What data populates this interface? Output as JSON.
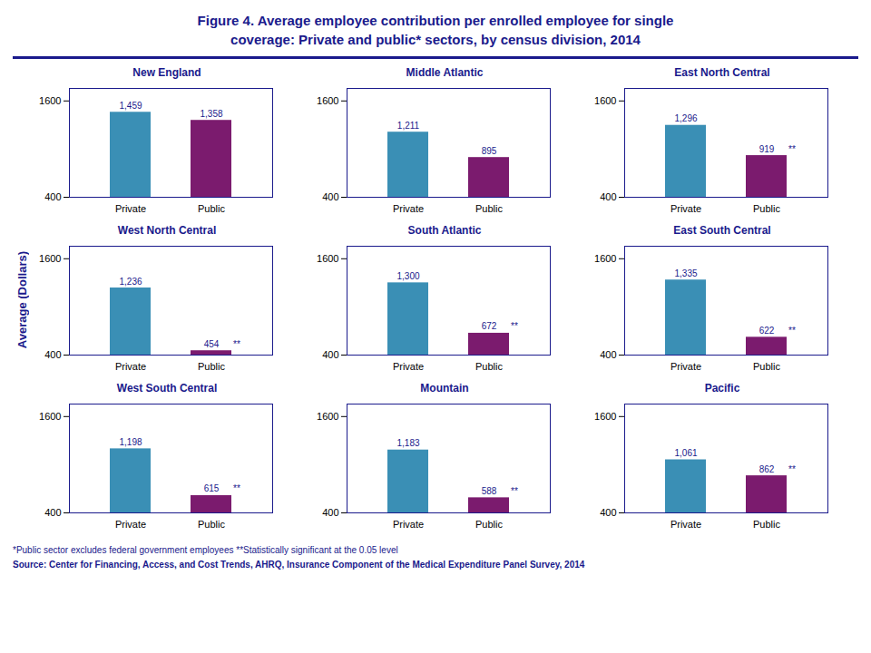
{
  "title": "Figure 4. Average employee contribution per enrolled employee for single\ncoverage: Private and public* sectors, by census division, 2014",
  "ylabel": "Average (Dollars)",
  "annotations": [
    "*Public sector excludes federal government employees   **Statistically significant at the 0.05 level",
    "Source: Center for Financing, Access, and Cost Trends, AHRQ, Insurance Component of the Medical Expenditure Panel Survey, 2014"
  ],
  "chart_data": [
    {
      "type": "bar",
      "title": "New England",
      "categories": [
        "Private",
        "Public"
      ],
      "values": [
        1459,
        1358
      ],
      "value_labels": [
        "1,459",
        "1,358"
      ],
      "colors": [
        "#3A8FB5",
        "#7B1B6E"
      ],
      "ylim": [
        400,
        1756
      ],
      "yticks": [
        400,
        1600
      ],
      "data_labels": true,
      "grid": false
    },
    {
      "type": "bar",
      "title": "Middle Atlantic",
      "categories": [
        "Private",
        "Public"
      ],
      "values": [
        1211,
        895
      ],
      "value_labels": [
        "1,211",
        "895"
      ],
      "colors": [
        "#3A8FB5",
        "#7B1B6E"
      ],
      "ylim": [
        400,
        1756
      ],
      "yticks": [
        400,
        1600
      ],
      "data_labels": true,
      "grid": false
    },
    {
      "type": "bar",
      "title": "East North Central",
      "categories": [
        "Private",
        "Public"
      ],
      "values": [
        1296,
        919
      ],
      "value_labels": [
        "1,296",
        "919"
      ],
      "colors": [
        "#3A8FB5",
        "#7B1B6E"
      ],
      "ylim": [
        400,
        1756
      ],
      "yticks": [
        400,
        1600
      ],
      "data_labels": true,
      "grid": false,
      "annotations": [
        {
          "text": "**",
          "x": "Public"
        }
      ]
    },
    {
      "type": "bar",
      "title": "West North Central",
      "categories": [
        "Private",
        "Public"
      ],
      "values": [
        1236,
        454
      ],
      "value_labels": [
        "1,236",
        "454"
      ],
      "colors": [
        "#3A8FB5",
        "#7B1B6E"
      ],
      "ylim": [
        400,
        1756
      ],
      "yticks": [
        400,
        1600
      ],
      "data_labels": true,
      "grid": false,
      "annotations": [
        {
          "text": "**",
          "x": "Public"
        }
      ]
    },
    {
      "type": "bar",
      "title": "South Atlantic",
      "categories": [
        "Private",
        "Public"
      ],
      "values": [
        1300,
        672
      ],
      "value_labels": [
        "1,300",
        "672"
      ],
      "colors": [
        "#3A8FB5",
        "#7B1B6E"
      ],
      "ylim": [
        400,
        1756
      ],
      "yticks": [
        400,
        1600
      ],
      "data_labels": true,
      "grid": false,
      "annotations": [
        {
          "text": "**",
          "x": "Public"
        }
      ]
    },
    {
      "type": "bar",
      "title": "East South Central",
      "categories": [
        "Private",
        "Public"
      ],
      "values": [
        1335,
        622
      ],
      "value_labels": [
        "1,335",
        "622"
      ],
      "colors": [
        "#3A8FB5",
        "#7B1B6E"
      ],
      "ylim": [
        400,
        1756
      ],
      "yticks": [
        400,
        1600
      ],
      "data_labels": true,
      "grid": false,
      "annotations": [
        {
          "text": "**",
          "x": "Public"
        }
      ]
    },
    {
      "type": "bar",
      "title": "West South Central",
      "categories": [
        "Private",
        "Public"
      ],
      "values": [
        1198,
        615
      ],
      "value_labels": [
        "1,198",
        "615"
      ],
      "colors": [
        "#3A8FB5",
        "#7B1B6E"
      ],
      "ylim": [
        400,
        1756
      ],
      "yticks": [
        400,
        1600
      ],
      "data_labels": true,
      "grid": false,
      "annotations": [
        {
          "text": "**",
          "x": "Public"
        }
      ]
    },
    {
      "type": "bar",
      "title": "Mountain",
      "categories": [
        "Private",
        "Public"
      ],
      "values": [
        1183,
        588
      ],
      "value_labels": [
        "1,183",
        "588"
      ],
      "colors": [
        "#3A8FB5",
        "#7B1B6E"
      ],
      "ylim": [
        400,
        1756
      ],
      "yticks": [
        400,
        1600
      ],
      "data_labels": true,
      "grid": false,
      "annotations": [
        {
          "text": "**",
          "x": "Public"
        }
      ]
    },
    {
      "type": "bar",
      "title": "Pacific",
      "categories": [
        "Private",
        "Public"
      ],
      "values": [
        1061,
        862
      ],
      "value_labels": [
        "1,061",
        "862"
      ],
      "colors": [
        "#3A8FB5",
        "#7B1B6E"
      ],
      "ylim": [
        400,
        1756
      ],
      "yticks": [
        400,
        1600
      ],
      "data_labels": true,
      "grid": false,
      "annotations": [
        {
          "text": "**",
          "x": "Public"
        }
      ]
    }
  ]
}
